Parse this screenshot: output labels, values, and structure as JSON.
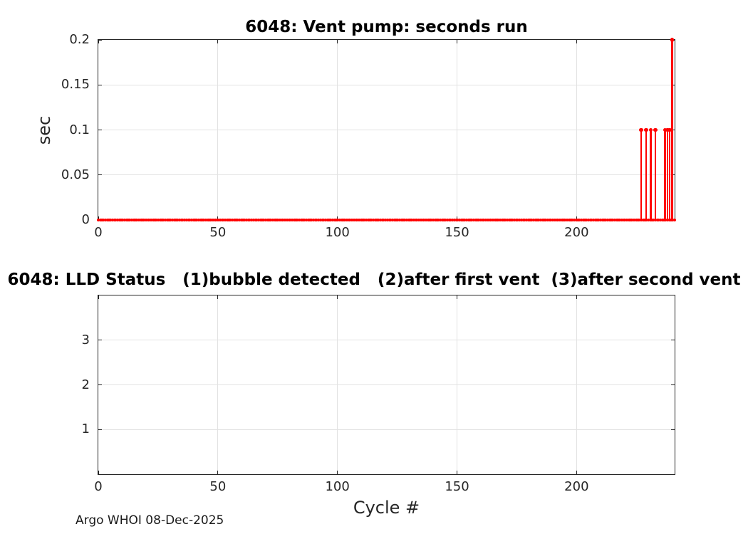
{
  "figure": {
    "footer": "Argo WHOI 08-Dec-2025",
    "background": "#ffffff"
  },
  "colors": {
    "series_red": "#ff0000",
    "grid_line": "#e2e2e2",
    "axis_line": "#262626",
    "tick_text": "#262626",
    "title_text": "#000000"
  },
  "chart_data": [
    {
      "type": "line",
      "title": "6048: Vent pump: seconds run",
      "xlabel": "",
      "ylabel": "sec",
      "xlim": [
        0,
        241
      ],
      "ylim": [
        0,
        0.2
      ],
      "xticks": [
        0,
        50,
        100,
        150,
        200
      ],
      "yticks": [
        0,
        0.05,
        0.1,
        0.15,
        0.2
      ],
      "grid": true,
      "legend": null,
      "series": [
        {
          "name": "vent pump seconds run",
          "color": "#ff0000",
          "marker": "filled-point",
          "description": "0 sec for every cycle from 0 to 241 except the spikes listed",
          "baseline": {
            "y": 0,
            "x_start": 0,
            "x_end": 241,
            "x_step": 1
          },
          "spikes": [
            {
              "x": 227,
              "y": 0.1
            },
            {
              "x": 229,
              "y": 0.1
            },
            {
              "x": 231,
              "y": 0.1
            },
            {
              "x": 233,
              "y": 0.1
            },
            {
              "x": 237,
              "y": 0.1
            },
            {
              "x": 238,
              "y": 0.1
            },
            {
              "x": 239,
              "y": 0.1
            },
            {
              "x": 240,
              "y": 0.2
            }
          ]
        }
      ]
    },
    {
      "type": "line",
      "title": "6048: LLD Status   (1)bubble detected   (2)after first vent  (3)after second vent",
      "xlabel": "Cycle #",
      "ylabel": "",
      "xlim": [
        0,
        241
      ],
      "ylim": [
        0,
        4
      ],
      "xticks": [
        0,
        50,
        100,
        150,
        200
      ],
      "yticks": [
        1,
        2,
        3
      ],
      "grid": true,
      "legend": null,
      "series": []
    }
  ]
}
